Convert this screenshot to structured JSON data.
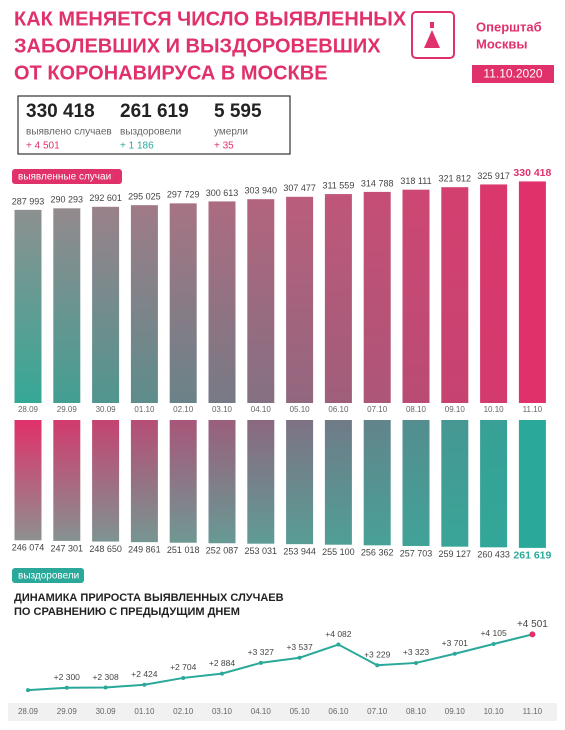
{
  "header": {
    "title_lines": [
      "КАК МЕНЯЕТСЯ ЧИСЛО ВЫЯВЛЕННЫХ",
      "ЗАБОЛЕВШИХ И ВЫЗДОРОВЕВШИХ",
      "ОТ КОРОНАВИРУСА В МОСКВЕ"
    ],
    "brand": [
      "Оперштаб",
      "Москвы"
    ],
    "date": "11.10.2020"
  },
  "summary": [
    {
      "value": "330 418",
      "label": "выявлено случаев",
      "delta": "+ 4 501"
    },
    {
      "value": "261 619",
      "label": "выздоровели",
      "delta": "+ 1 186"
    },
    {
      "value": "5 595",
      "label": "умерли",
      "delta": "+ 35"
    }
  ],
  "chart_data": [
    {
      "type": "bar",
      "categories": [
        "28.09",
        "29.09",
        "30.09",
        "01.10",
        "02.10",
        "03.10",
        "04.10",
        "05.10",
        "06.10",
        "07.10",
        "08.10",
        "09.10",
        "10.10",
        "11.10"
      ],
      "series": [
        {
          "name": "выявленные случаи",
          "color": "#e0316a",
          "values": [
            287993,
            290293,
            292601,
            295025,
            297729,
            300613,
            303940,
            307477,
            311559,
            314788,
            318111,
            321812,
            325917,
            330418
          ],
          "value_labels": [
            "287 993",
            "290 293",
            "292 601",
            "295 025",
            "297 729",
            "300 613",
            "303 940",
            "307 477",
            "311 559",
            "314 788",
            "318 111",
            "321 812",
            "325 917",
            "330 418"
          ]
        }
      ],
      "gradient": {
        "top": [
          "#8d9090",
          "#e0316a"
        ],
        "bottom": [
          "#36a896",
          "#e0316a"
        ]
      },
      "ylim": [
        0,
        340000
      ]
    },
    {
      "type": "bar",
      "direction": "down",
      "series": [
        {
          "name": "выздоровели",
          "color": "#2aa99a",
          "values": [
            246074,
            247301,
            248650,
            249861,
            251018,
            252087,
            253031,
            253944,
            255100,
            256362,
            257703,
            259127,
            260433,
            261619
          ],
          "value_labels": [
            "246 074",
            "247 301",
            "248 650",
            "249 861",
            "251 018",
            "252 087",
            "253 031",
            "253 944",
            "255 100",
            "256 362",
            "257 703",
            "259 127",
            "260 433",
            "261 619"
          ]
        }
      ],
      "gradient": {
        "top": [
          "#e0316a",
          "#2aa99a"
        ],
        "bottom": [
          "#8d9090",
          "#2aa99a"
        ]
      },
      "ylim": [
        0,
        270000
      ]
    },
    {
      "type": "line",
      "title_lines": [
        "ДИНАМИКА ПРИРОСТА ВЫЯВЛЕННЫХ СЛУЧАЕВ",
        "ПО СРАВНЕНИЮ С ПРЕДЫДУЩИМ ДНЕМ"
      ],
      "categories": [
        "28.09",
        "29.09",
        "30.09",
        "01.10",
        "02.10",
        "03.10",
        "04.10",
        "05.10",
        "06.10",
        "07.10",
        "08.10",
        "09.10",
        "10.10",
        "11.10"
      ],
      "series": [
        {
          "name": null,
          "color": "#2aa99a",
          "values": [
            2200,
            2300,
            2308,
            2424,
            2704,
            2884,
            3327,
            3537,
            4082,
            3229,
            3323,
            3701,
            4105,
            4501
          ],
          "value_labels": [
            null,
            "+2 300",
            "+2 308",
            "+2 424",
            "+2 704",
            "+2 884",
            "+3 327",
            "+3 537",
            "+4 082",
            "+3 229",
            "+3 323",
            "+3 701",
            "+4 105",
            "+4 501"
          ]
        }
      ],
      "ylim": [
        2000,
        4600
      ]
    }
  ]
}
